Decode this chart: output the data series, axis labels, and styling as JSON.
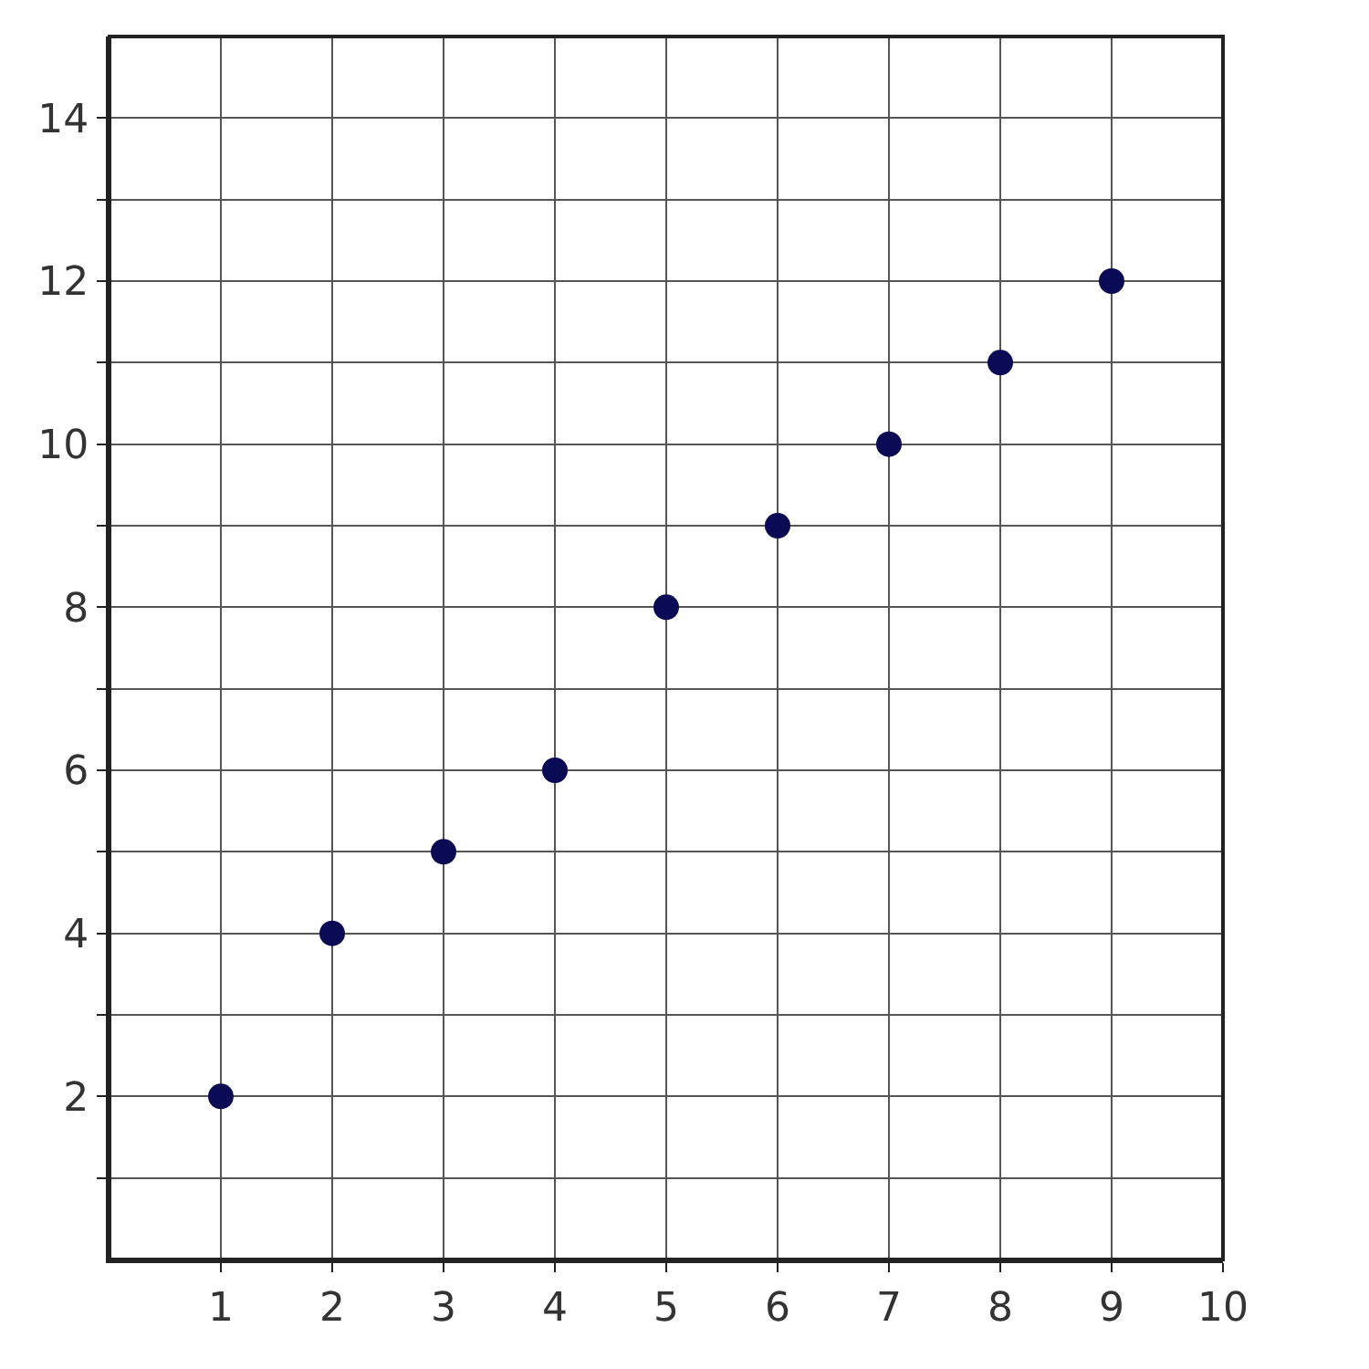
{
  "chart_data": {
    "type": "scatter",
    "x": [
      1,
      2,
      3,
      4,
      5,
      6,
      7,
      8,
      9
    ],
    "series": [
      {
        "color": "#0b0b55",
        "values": [
          2,
          4,
          5,
          6,
          8,
          9,
          10,
          11,
          12
        ]
      }
    ],
    "xlim": [
      0,
      10
    ],
    "ylim": [
      0,
      15
    ],
    "xticks": [
      1,
      2,
      3,
      4,
      5,
      6,
      7,
      8,
      9,
      10
    ],
    "yticks": [
      {
        "value": 1,
        "label": null
      },
      2,
      {
        "value": 3,
        "label": null
      },
      4,
      {
        "value": 5,
        "label": null
      },
      6,
      {
        "value": 7,
        "label": null
      },
      8,
      {
        "value": 9,
        "label": null
      },
      10,
      {
        "value": 11,
        "label": null
      },
      12,
      {
        "value": 13,
        "label": null
      },
      14
    ],
    "grid": true,
    "marker": "circle"
  }
}
